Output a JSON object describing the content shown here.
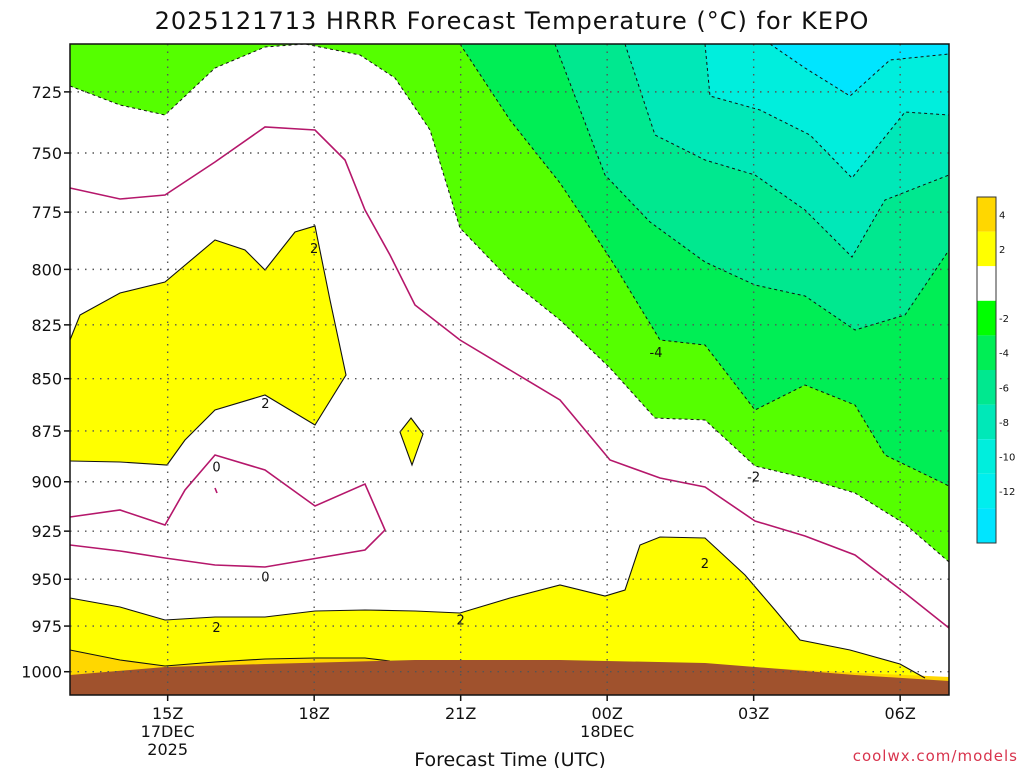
{
  "chart_data": {
    "type": "filled-contour",
    "title": "2025121713 HRRR Forecast Temperature (°C) for KEPO",
    "xlabel": "Forecast Time (UTC)",
    "ylabel": "",
    "y_axis": {
      "quantity": "pressure",
      "units": "hPa",
      "inverted": true,
      "ylim": [
        1013,
        706
      ],
      "ticks": [
        725,
        750,
        775,
        800,
        825,
        850,
        875,
        900,
        925,
        950,
        975,
        1000
      ]
    },
    "x_axis": {
      "units": "hours since 2025-12-17 13Z",
      "xlim": [
        0,
        18
      ],
      "ticks": [
        {
          "x": 2,
          "lines": [
            "15Z",
            "17DEC",
            "2025"
          ]
        },
        {
          "x": 5,
          "lines": [
            "18Z"
          ]
        },
        {
          "x": 8,
          "lines": [
            "21Z"
          ]
        },
        {
          "x": 11,
          "lines": [
            "00Z",
            "18DEC"
          ]
        },
        {
          "x": 14,
          "lines": [
            "03Z"
          ]
        },
        {
          "x": 17,
          "lines": [
            "06Z"
          ]
        }
      ]
    },
    "grid": true,
    "colorbar": {
      "placement": "right",
      "levels": [
        {
          "color": "#ffd700",
          "label": "4"
        },
        {
          "color": "#ffff00",
          "label": "2"
        },
        {
          "color": "#ffffff",
          "label": ""
        },
        {
          "color": "#00ff00",
          "label": "-2"
        },
        {
          "color": "#00ee55",
          "label": "-4"
        },
        {
          "color": "#00e88f",
          "label": "-6"
        },
        {
          "color": "#00e8b8",
          "label": "-8"
        },
        {
          "color": "#00eedd",
          "label": "-10"
        },
        {
          "color": "#00eeee",
          "label": "-12"
        },
        {
          "color": "#00e5ff",
          "label": ""
        }
      ]
    },
    "colors": {
      "t_gt4": "#ffd700",
      "t_2_4": "#ffff00",
      "t_m2_2": "#ffffff",
      "t_m4_m2": "#55ff00",
      "t_m6_m4": "#00ee55",
      "t_m8_m6": "#00e88f",
      "t_m10_m8": "#00e8b8",
      "t_m12_m10": "#00eedd",
      "t_lt_m12": "#00e5ff",
      "terrain": "#a0522d",
      "zero_line": "#b5176b"
    },
    "contour_labels": [
      {
        "text": "2",
        "x": 5.0,
        "p": 791
      },
      {
        "text": "2",
        "x": 4.0,
        "p": 862
      },
      {
        "text": "0",
        "x": 3.0,
        "p": 893
      },
      {
        "text": "0",
        "x": 4.0,
        "p": 949
      },
      {
        "text": "2",
        "x": 3.0,
        "p": 976
      },
      {
        "text": "2",
        "x": 8.0,
        "p": 972
      },
      {
        "text": "2",
        "x": 13.0,
        "p": 942
      },
      {
        "text": "-4",
        "x": 12.0,
        "p": 838
      },
      {
        "text": "-2",
        "x": 14.0,
        "p": 898
      }
    ],
    "credit": "coolwx.com/models"
  }
}
